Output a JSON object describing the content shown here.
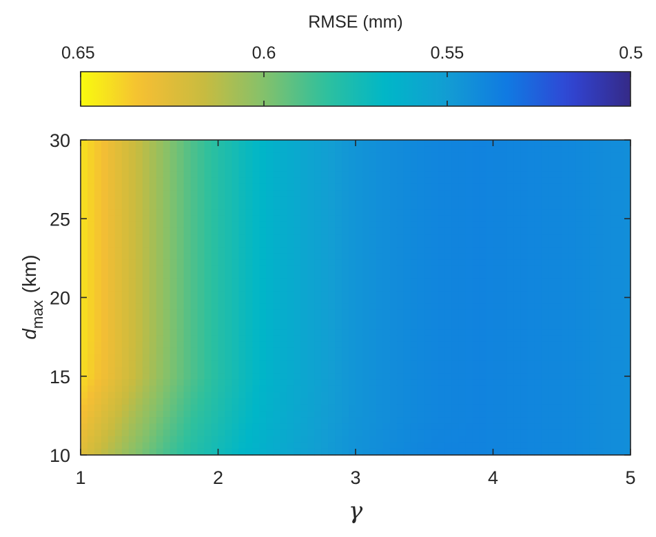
{
  "chart_data": {
    "type": "heatmap",
    "title": "",
    "xlabel": "γ",
    "ylabel": {
      "main": "d",
      "subscript": "max",
      "unit": "(km)"
    },
    "xlim": [
      1,
      5
    ],
    "ylim": [
      10,
      30
    ],
    "x_ticks": [
      1,
      2,
      3,
      4,
      5
    ],
    "y_ticks": [
      10,
      15,
      20,
      25,
      30
    ],
    "colorbar": {
      "label": "RMSE (mm)",
      "location": "top",
      "direction": "reversed",
      "range": [
        0.5,
        0.65
      ],
      "ticks": [
        0.65,
        0.6,
        0.55,
        0.5
      ],
      "tick_labels": [
        "0.65",
        "0.6",
        "0.55",
        "0.5"
      ],
      "colormap": "parula"
    },
    "grid": false,
    "x": [
      1.0,
      1.2,
      1.4,
      1.6,
      1.8,
      2.0,
      2.2,
      2.4,
      2.6,
      2.8,
      3.0,
      3.3,
      3.6,
      3.9,
      4.2,
      4.5,
      4.8,
      5.0
    ],
    "y": [
      10,
      12.5,
      15,
      17.5,
      20,
      25,
      30
    ],
    "z": [
      [
        0.625,
        0.612,
        0.6,
        0.589,
        0.58,
        0.573,
        0.566,
        0.56,
        0.554,
        0.549,
        0.545,
        0.541,
        0.538,
        0.538,
        0.539,
        0.54,
        0.542,
        0.543
      ],
      [
        0.634,
        0.621,
        0.608,
        0.596,
        0.585,
        0.577,
        0.569,
        0.562,
        0.556,
        0.55,
        0.546,
        0.542,
        0.539,
        0.538,
        0.539,
        0.54,
        0.542,
        0.543
      ],
      [
        0.642,
        0.63,
        0.616,
        0.602,
        0.59,
        0.58,
        0.571,
        0.563,
        0.557,
        0.551,
        0.546,
        0.542,
        0.539,
        0.538,
        0.539,
        0.54,
        0.542,
        0.543
      ],
      [
        0.643,
        0.631,
        0.617,
        0.603,
        0.59,
        0.58,
        0.571,
        0.563,
        0.557,
        0.551,
        0.546,
        0.542,
        0.539,
        0.538,
        0.539,
        0.54,
        0.542,
        0.543
      ],
      [
        0.643,
        0.631,
        0.617,
        0.603,
        0.59,
        0.58,
        0.571,
        0.563,
        0.557,
        0.551,
        0.546,
        0.542,
        0.539,
        0.538,
        0.539,
        0.54,
        0.542,
        0.543
      ],
      [
        0.643,
        0.631,
        0.617,
        0.603,
        0.59,
        0.58,
        0.571,
        0.563,
        0.557,
        0.551,
        0.546,
        0.542,
        0.539,
        0.538,
        0.539,
        0.54,
        0.542,
        0.543
      ],
      [
        0.643,
        0.631,
        0.617,
        0.603,
        0.59,
        0.58,
        0.571,
        0.563,
        0.557,
        0.551,
        0.546,
        0.542,
        0.539,
        0.538,
        0.539,
        0.54,
        0.542,
        0.543
      ]
    ]
  },
  "colors": {
    "axis": "#262626",
    "parula": [
      "#352a87",
      "#3145d4",
      "#1079e2",
      "#139dd3",
      "#00b6c8",
      "#2fc09d",
      "#84c16b",
      "#c9bb3f",
      "#f4be34",
      "#f9fb0e"
    ]
  }
}
